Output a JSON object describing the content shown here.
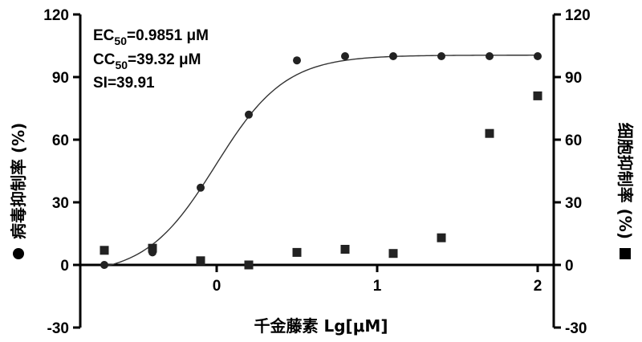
{
  "chart_data": {
    "type": "scatter",
    "title": "",
    "xlabel": "千金藤素 Lg[μM]",
    "ylabel_left": "病毒抑制率 (%)",
    "ylabel_right": "细胞抑制率 (%)",
    "xlim": [
      -0.7,
      2.0
    ],
    "ylim": [
      -30,
      120
    ],
    "x_ticks": [
      0,
      1,
      2
    ],
    "y_ticks": [
      -30,
      0,
      30,
      60,
      90,
      120
    ],
    "grid": false,
    "annotations": [
      {
        "label": "EC",
        "sub": "50",
        "value": "=0.9851 μM"
      },
      {
        "label": "CC",
        "sub": "50",
        "value": "=39.32 μM"
      },
      {
        "label": "SI=39.91",
        "sub": "",
        "value": ""
      }
    ],
    "series": [
      {
        "marker": "circle",
        "axis": "left",
        "color": "#222222",
        "x": [
          -0.7,
          -0.4,
          -0.1,
          0.2,
          0.5,
          0.8,
          1.1,
          1.4,
          1.7,
          2.0
        ],
        "y": [
          0,
          6,
          37,
          72,
          98,
          100,
          100,
          100,
          100,
          100
        ]
      },
      {
        "marker": "square",
        "axis": "right",
        "color": "#222222",
        "x": [
          -0.7,
          -0.4,
          -0.1,
          0.2,
          0.5,
          0.8,
          1.1,
          1.4,
          1.7,
          2.0
        ],
        "y": [
          7,
          8,
          2,
          0,
          6,
          7.5,
          5.5,
          13,
          63,
          81
        ]
      }
    ],
    "fit": {
      "series": 0,
      "model": "4PL",
      "bottom": -5,
      "top": 100.5,
      "logEC50": -0.0065,
      "hill": 2.0,
      "x_range": [
        -0.7,
        2.0
      ]
    }
  }
}
